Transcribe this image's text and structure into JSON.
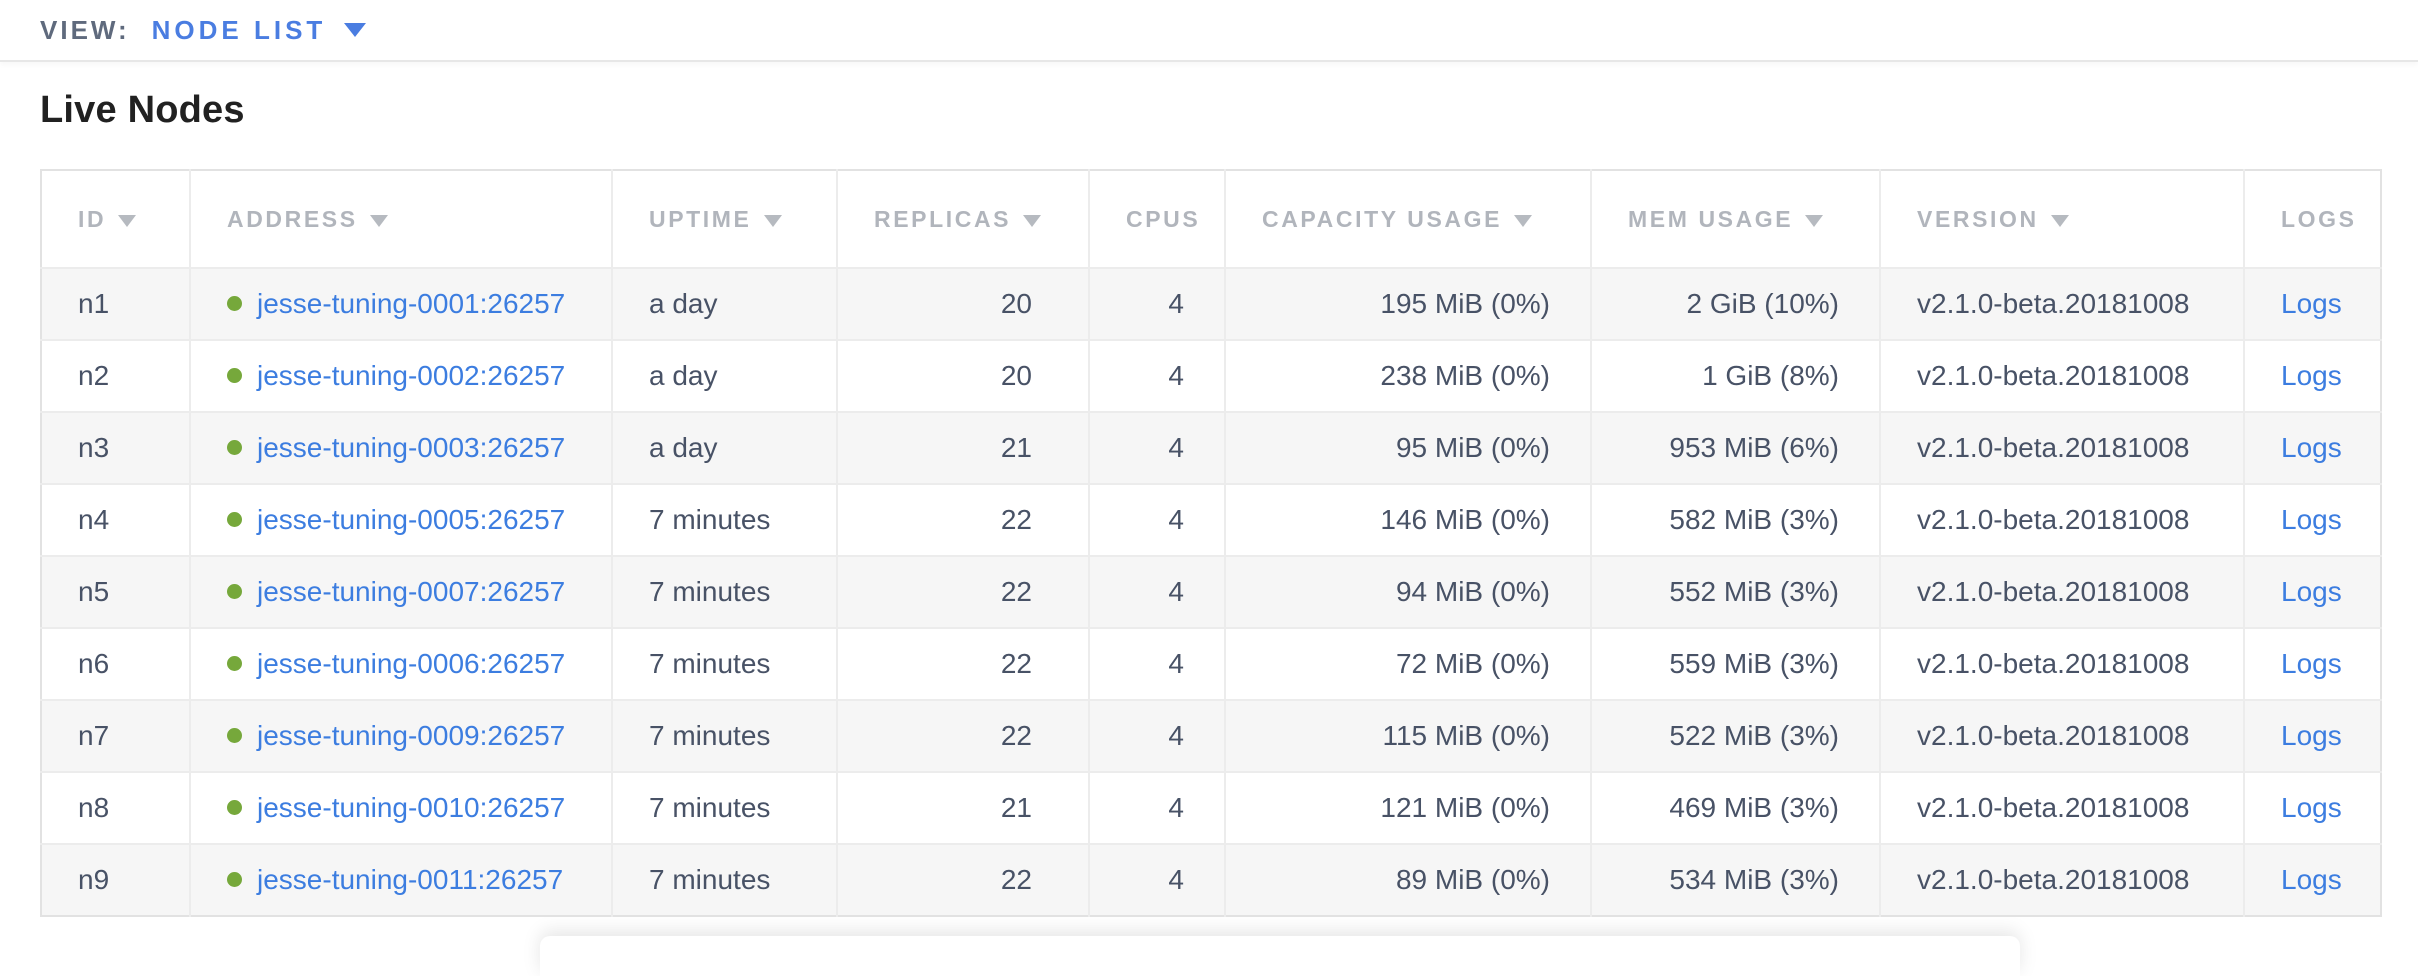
{
  "view_bar": {
    "label": "VIEW:",
    "selected": "NODE LIST"
  },
  "page": {
    "title": "Live Nodes"
  },
  "colors": {
    "accent_blue": "#4a7de1",
    "link_blue": "#3c7de0",
    "live_green": "#76a83b",
    "header_gray": "#b1b5bc",
    "cell_text": "#485266",
    "row_odd_bg": "#f6f6f6"
  },
  "icons": {
    "view_dropdown": "caret-down-icon",
    "sort": "sort-desc-triangle-icon",
    "node_status": "live-green-dot-icon"
  },
  "table": {
    "columns": [
      {
        "key": "id",
        "label": "ID",
        "sortable": true,
        "align": "left"
      },
      {
        "key": "address",
        "label": "ADDRESS",
        "sortable": true,
        "align": "left"
      },
      {
        "key": "uptime",
        "label": "UPTIME",
        "sortable": true,
        "align": "left"
      },
      {
        "key": "replicas",
        "label": "REPLICAS",
        "sortable": true,
        "align": "right"
      },
      {
        "key": "cpus",
        "label": "CPUS",
        "sortable": false,
        "align": "right"
      },
      {
        "key": "capacity",
        "label": "CAPACITY USAGE",
        "sortable": true,
        "align": "right"
      },
      {
        "key": "mem",
        "label": "MEM USAGE",
        "sortable": true,
        "align": "right"
      },
      {
        "key": "version",
        "label": "VERSION",
        "sortable": true,
        "align": "left"
      },
      {
        "key": "logs",
        "label": "LOGS",
        "sortable": false,
        "align": "left"
      }
    ],
    "rows": [
      {
        "id": "n1",
        "status": "live",
        "address": "jesse-tuning-0001:26257",
        "uptime": "a day",
        "replicas": "20",
        "cpus": "4",
        "capacity": "195 MiB (0%)",
        "mem": "2 GiB (10%)",
        "version": "v2.1.0-beta.20181008",
        "logs": "Logs"
      },
      {
        "id": "n2",
        "status": "live",
        "address": "jesse-tuning-0002:26257",
        "uptime": "a day",
        "replicas": "20",
        "cpus": "4",
        "capacity": "238 MiB (0%)",
        "mem": "1 GiB (8%)",
        "version": "v2.1.0-beta.20181008",
        "logs": "Logs"
      },
      {
        "id": "n3",
        "status": "live",
        "address": "jesse-tuning-0003:26257",
        "uptime": "a day",
        "replicas": "21",
        "cpus": "4",
        "capacity": "95 MiB (0%)",
        "mem": "953 MiB (6%)",
        "version": "v2.1.0-beta.20181008",
        "logs": "Logs"
      },
      {
        "id": "n4",
        "status": "live",
        "address": "jesse-tuning-0005:26257",
        "uptime": "7 minutes",
        "replicas": "22",
        "cpus": "4",
        "capacity": "146 MiB (0%)",
        "mem": "582 MiB (3%)",
        "version": "v2.1.0-beta.20181008",
        "logs": "Logs"
      },
      {
        "id": "n5",
        "status": "live",
        "address": "jesse-tuning-0007:26257",
        "uptime": "7 minutes",
        "replicas": "22",
        "cpus": "4",
        "capacity": "94 MiB (0%)",
        "mem": "552 MiB (3%)",
        "version": "v2.1.0-beta.20181008",
        "logs": "Logs"
      },
      {
        "id": "n6",
        "status": "live",
        "address": "jesse-tuning-0006:26257",
        "uptime": "7 minutes",
        "replicas": "22",
        "cpus": "4",
        "capacity": "72 MiB (0%)",
        "mem": "559 MiB (3%)",
        "version": "v2.1.0-beta.20181008",
        "logs": "Logs"
      },
      {
        "id": "n7",
        "status": "live",
        "address": "jesse-tuning-0009:26257",
        "uptime": "7 minutes",
        "replicas": "22",
        "cpus": "4",
        "capacity": "115 MiB (0%)",
        "mem": "522 MiB (3%)",
        "version": "v2.1.0-beta.20181008",
        "logs": "Logs"
      },
      {
        "id": "n8",
        "status": "live",
        "address": "jesse-tuning-0010:26257",
        "uptime": "7 minutes",
        "replicas": "21",
        "cpus": "4",
        "capacity": "121 MiB (0%)",
        "mem": "469 MiB (3%)",
        "version": "v2.1.0-beta.20181008",
        "logs": "Logs"
      },
      {
        "id": "n9",
        "status": "live",
        "address": "jesse-tuning-0011:26257",
        "uptime": "7 minutes",
        "replicas": "22",
        "cpus": "4",
        "capacity": "89 MiB (0%)",
        "mem": "534 MiB (3%)",
        "version": "v2.1.0-beta.20181008",
        "logs": "Logs"
      }
    ]
  }
}
